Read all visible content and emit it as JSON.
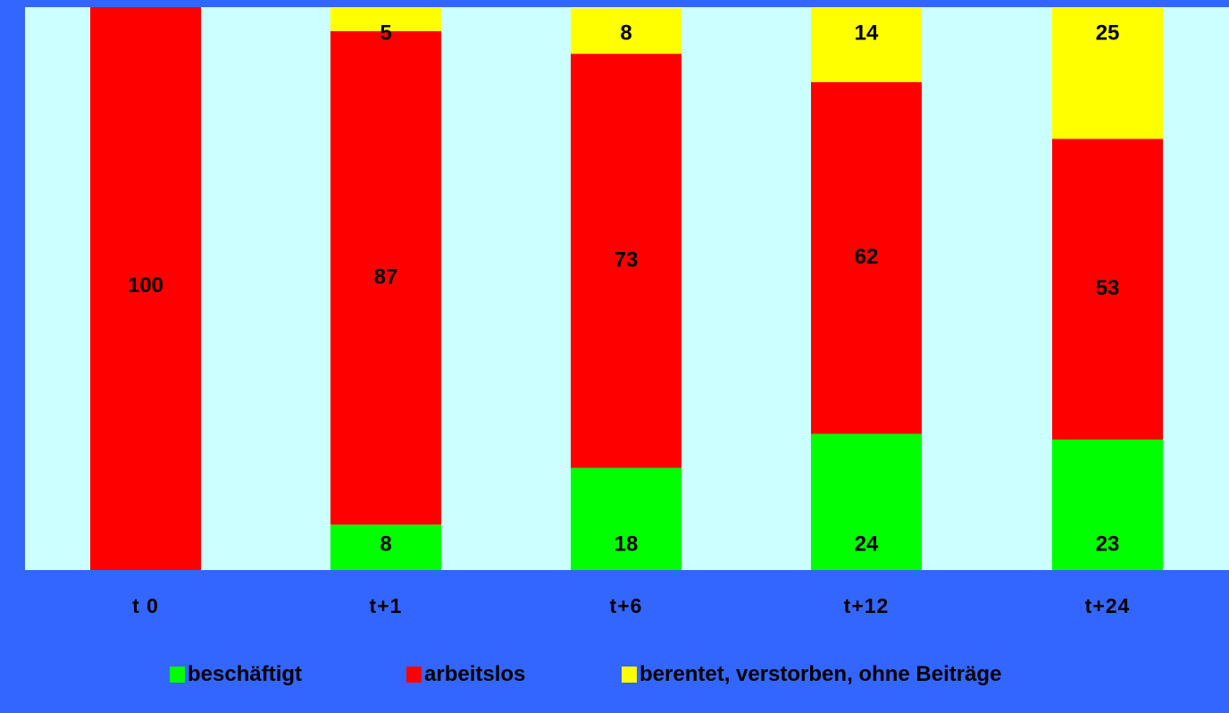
{
  "chart_data": {
    "type": "bar",
    "stacked": true,
    "categories": [
      "t 0",
      "t+1",
      "t+6",
      "t+12",
      "t+24"
    ],
    "series": [
      {
        "name": "beschäftigt",
        "color": "#00ff00",
        "values": [
          0,
          8,
          18,
          24,
          23
        ]
      },
      {
        "name": "arbeitslos",
        "color": "#ff0000",
        "values": [
          100,
          87,
          73,
          62,
          53
        ]
      },
      {
        "name": "berentet, verstorben, ohne Beiträge",
        "color": "#ffff00",
        "values": [
          0,
          5,
          8,
          14,
          25
        ]
      }
    ],
    "ylim": [
      0,
      100
    ],
    "grid": false,
    "legend_position": "bottom",
    "plot_background": "#ccffff",
    "figure_background": "#3366ff"
  }
}
